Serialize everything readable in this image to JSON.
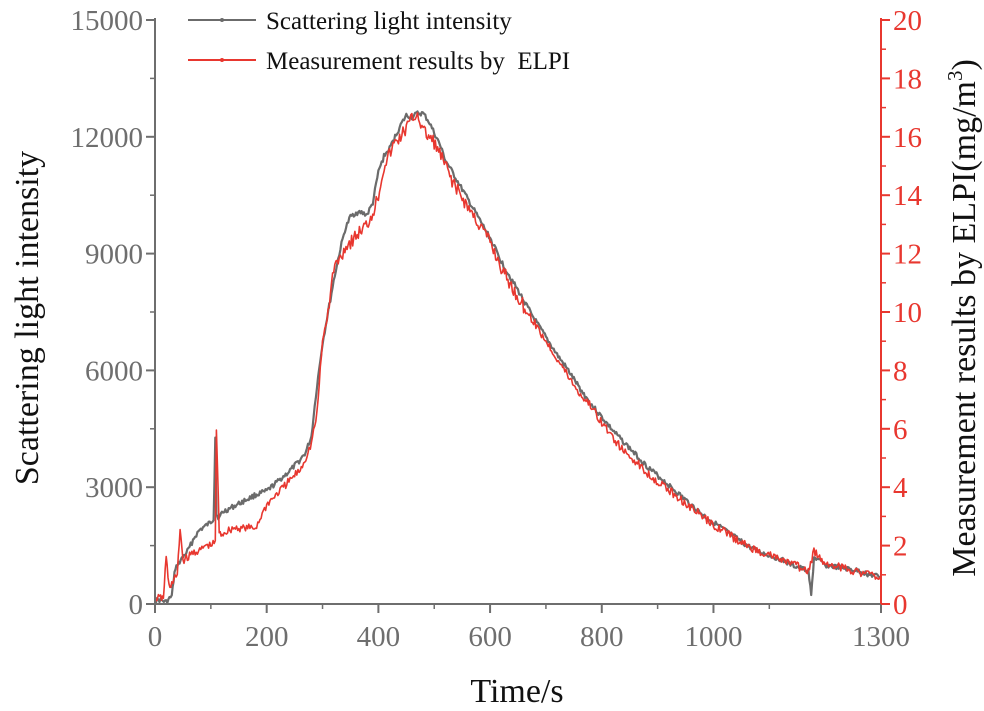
{
  "chart_data": {
    "type": "line",
    "title": "",
    "xlabel": "Time/s",
    "ylabel": "Scattering light intensity",
    "y2label_main": "Measurement results by ELPI(mg/m",
    "y2label_sup": "3",
    "y2label_close": ")",
    "xlim": [
      0,
      1300
    ],
    "ylim": [
      0,
      15000
    ],
    "y2lim": [
      0,
      20
    ],
    "x_ticks": [
      0,
      200,
      400,
      600,
      800,
      1000,
      1300
    ],
    "x_tick_labels": [
      "0",
      "200",
      "400",
      "600",
      "800",
      "1000",
      "1300"
    ],
    "y_ticks": [
      0,
      3000,
      6000,
      9000,
      12000,
      15000
    ],
    "y_tick_labels": [
      "0",
      "3000",
      "6000",
      "9000",
      "12000",
      "15000"
    ],
    "y2_ticks": [
      0,
      2,
      4,
      6,
      8,
      10,
      12,
      14,
      16,
      18,
      20
    ],
    "y2_tick_labels": [
      "0",
      "2",
      "4",
      "6",
      "8",
      "10",
      "12",
      "14",
      "16",
      "18",
      "20"
    ],
    "legend_position": "top-left",
    "colors": {
      "scatter_series": "#6b6b6b",
      "elpi_series": "#e8372f",
      "axis_left": "#6e6e6e",
      "axis_right": "#e8372f"
    },
    "series": [
      {
        "name": "Scattering light intensity",
        "axis": "left",
        "color": "#6b6b6b",
        "x": [
          0,
          10,
          20,
          30,
          35,
          40,
          50,
          60,
          70,
          80,
          90,
          100,
          105,
          108,
          110,
          115,
          120,
          140,
          160,
          180,
          200,
          220,
          240,
          260,
          270,
          280,
          290,
          300,
          310,
          320,
          330,
          340,
          350,
          360,
          370,
          380,
          390,
          400,
          410,
          420,
          430,
          440,
          450,
          460,
          470,
          480,
          490,
          500,
          510,
          520,
          540,
          560,
          580,
          600,
          620,
          640,
          660,
          680,
          700,
          720,
          740,
          760,
          780,
          800,
          820,
          840,
          860,
          880,
          900,
          920,
          940,
          960,
          980,
          1000,
          1020,
          1040,
          1060,
          1080,
          1100,
          1120,
          1140,
          1160,
          1170,
          1175,
          1180,
          1200,
          1220,
          1240,
          1260,
          1280,
          1300
        ],
        "y": [
          100,
          100,
          50,
          200,
          800,
          1000,
          1200,
          1400,
          1700,
          1900,
          2000,
          2100,
          2200,
          4300,
          2300,
          2200,
          2350,
          2500,
          2650,
          2800,
          2900,
          3150,
          3400,
          3700,
          3900,
          4300,
          5600,
          6700,
          7500,
          8300,
          9000,
          9600,
          9950,
          10050,
          10050,
          10000,
          10300,
          11100,
          11500,
          11700,
          12000,
          12300,
          12550,
          12500,
          12600,
          12600,
          12400,
          12100,
          11800,
          11400,
          10900,
          10400,
          9900,
          9400,
          8800,
          8300,
          7800,
          7300,
          6850,
          6400,
          6000,
          5550,
          5150,
          4800,
          4450,
          4150,
          3850,
          3550,
          3300,
          3050,
          2800,
          2550,
          2300,
          2100,
          1900,
          1700,
          1500,
          1350,
          1250,
          1150,
          1000,
          900,
          850,
          200,
          1200,
          1000,
          950,
          900,
          850,
          750,
          700
        ]
      },
      {
        "name": "Measurement results by  ELPI",
        "axis": "right",
        "color": "#e8372f",
        "x": [
          0,
          10,
          15,
          20,
          25,
          30,
          40,
          45,
          50,
          60,
          70,
          80,
          90,
          100,
          108,
          110,
          115,
          120,
          140,
          160,
          180,
          200,
          220,
          240,
          260,
          270,
          280,
          290,
          300,
          310,
          320,
          330,
          340,
          350,
          360,
          370,
          380,
          390,
          400,
          410,
          420,
          430,
          440,
          450,
          460,
          470,
          480,
          490,
          500,
          510,
          520,
          540,
          560,
          580,
          600,
          620,
          640,
          660,
          680,
          700,
          720,
          740,
          760,
          780,
          800,
          820,
          840,
          860,
          880,
          900,
          920,
          940,
          960,
          980,
          1000,
          1020,
          1040,
          1060,
          1080,
          1100,
          1120,
          1140,
          1160,
          1170,
          1180,
          1200,
          1220,
          1240,
          1260,
          1280,
          1300
        ],
        "y": [
          0.2,
          0.2,
          0.2,
          1.6,
          0.6,
          0.7,
          1.0,
          2.6,
          1.5,
          1.6,
          1.8,
          1.8,
          2.0,
          2.0,
          2.1,
          6.0,
          2.4,
          2.4,
          2.6,
          2.6,
          2.6,
          3.4,
          3.8,
          4.2,
          4.6,
          5.0,
          5.5,
          6.5,
          9.0,
          10.0,
          11.5,
          11.8,
          12.2,
          12.4,
          12.6,
          12.8,
          13.0,
          13.4,
          14.0,
          15.0,
          15.4,
          15.8,
          16.0,
          16.3,
          16.6,
          16.8,
          16.2,
          16.0,
          15.8,
          15.4,
          15.0,
          14.2,
          13.6,
          13.0,
          12.4,
          11.5,
          10.8,
          10.2,
          9.6,
          9.0,
          8.4,
          7.8,
          7.2,
          6.8,
          6.2,
          5.7,
          5.2,
          4.9,
          4.5,
          4.2,
          3.9,
          3.6,
          3.3,
          3.0,
          2.7,
          2.5,
          2.2,
          2.0,
          1.8,
          1.7,
          1.5,
          1.4,
          1.2,
          1.1,
          1.8,
          1.4,
          1.3,
          1.2,
          1.1,
          1.0,
          0.9
        ]
      }
    ]
  }
}
